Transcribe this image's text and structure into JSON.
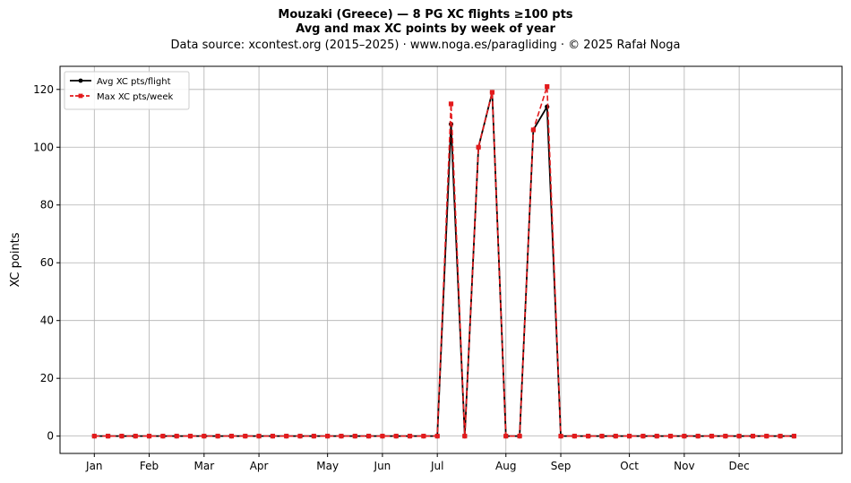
{
  "chart_data": {
    "type": "line",
    "title": "Mouzaki (Greece)  —  8 PG XC flights ≥100 pts",
    "subtitle": "Avg and max XC points by week of year",
    "source_line": "Data source: xcontest.org (2015–2025)  ·  www.noga.es/paragliding  ·  © 2025 Rafał Noga",
    "xlabel": "",
    "ylabel": "XC points",
    "x_unit": "week of year",
    "xlim": [
      -2.5,
      54.5
    ],
    "ylim": [
      -6,
      128
    ],
    "yticks": [
      0,
      20,
      40,
      60,
      80,
      100,
      120
    ],
    "month_ticks": [
      {
        "label": "Jan",
        "week": 0
      },
      {
        "label": "Feb",
        "week": 4
      },
      {
        "label": "Mar",
        "week": 8
      },
      {
        "label": "Apr",
        "week": 12
      },
      {
        "label": "May",
        "week": 17
      },
      {
        "label": "Jun",
        "week": 21
      },
      {
        "label": "Jul",
        "week": 25
      },
      {
        "label": "Aug",
        "week": 30
      },
      {
        "label": "Sep",
        "week": 34
      },
      {
        "label": "Oct",
        "week": 39
      },
      {
        "label": "Nov",
        "week": 43
      },
      {
        "label": "Dec",
        "week": 47
      }
    ],
    "grid": true,
    "legend_position": "top-left",
    "series": [
      {
        "name": "Avg XC pts/flight",
        "color": "#000000",
        "style": "solid",
        "marker": "circle",
        "x": [
          0,
          1,
          2,
          3,
          4,
          5,
          6,
          7,
          8,
          9,
          10,
          11,
          12,
          13,
          14,
          15,
          16,
          17,
          18,
          19,
          20,
          21,
          22,
          23,
          24,
          25,
          26,
          27,
          28,
          29,
          30,
          31,
          32,
          33,
          34,
          35,
          36,
          37,
          38,
          39,
          40,
          41,
          42,
          43,
          44,
          45,
          46,
          47,
          48,
          49,
          50,
          51
        ],
        "values": [
          0,
          0,
          0,
          0,
          0,
          0,
          0,
          0,
          0,
          0,
          0,
          0,
          0,
          0,
          0,
          0,
          0,
          0,
          0,
          0,
          0,
          0,
          0,
          0,
          0,
          0,
          108,
          0,
          100,
          119,
          0,
          0,
          106,
          114,
          0,
          0,
          0,
          0,
          0,
          0,
          0,
          0,
          0,
          0,
          0,
          0,
          0,
          0,
          0,
          0,
          0,
          0
        ]
      },
      {
        "name": "Max XC pts/week",
        "color": "#e31a1c",
        "style": "dashed",
        "marker": "square",
        "x": [
          0,
          1,
          2,
          3,
          4,
          5,
          6,
          7,
          8,
          9,
          10,
          11,
          12,
          13,
          14,
          15,
          16,
          17,
          18,
          19,
          20,
          21,
          22,
          23,
          24,
          25,
          26,
          27,
          28,
          29,
          30,
          31,
          32,
          33,
          34,
          35,
          36,
          37,
          38,
          39,
          40,
          41,
          42,
          43,
          44,
          45,
          46,
          47,
          48,
          49,
          50,
          51
        ],
        "values": [
          0,
          0,
          0,
          0,
          0,
          0,
          0,
          0,
          0,
          0,
          0,
          0,
          0,
          0,
          0,
          0,
          0,
          0,
          0,
          0,
          0,
          0,
          0,
          0,
          0,
          0,
          115,
          0,
          100,
          119,
          0,
          0,
          106,
          121,
          0,
          0,
          0,
          0,
          0,
          0,
          0,
          0,
          0,
          0,
          0,
          0,
          0,
          0,
          0,
          0,
          0,
          0
        ]
      }
    ]
  }
}
